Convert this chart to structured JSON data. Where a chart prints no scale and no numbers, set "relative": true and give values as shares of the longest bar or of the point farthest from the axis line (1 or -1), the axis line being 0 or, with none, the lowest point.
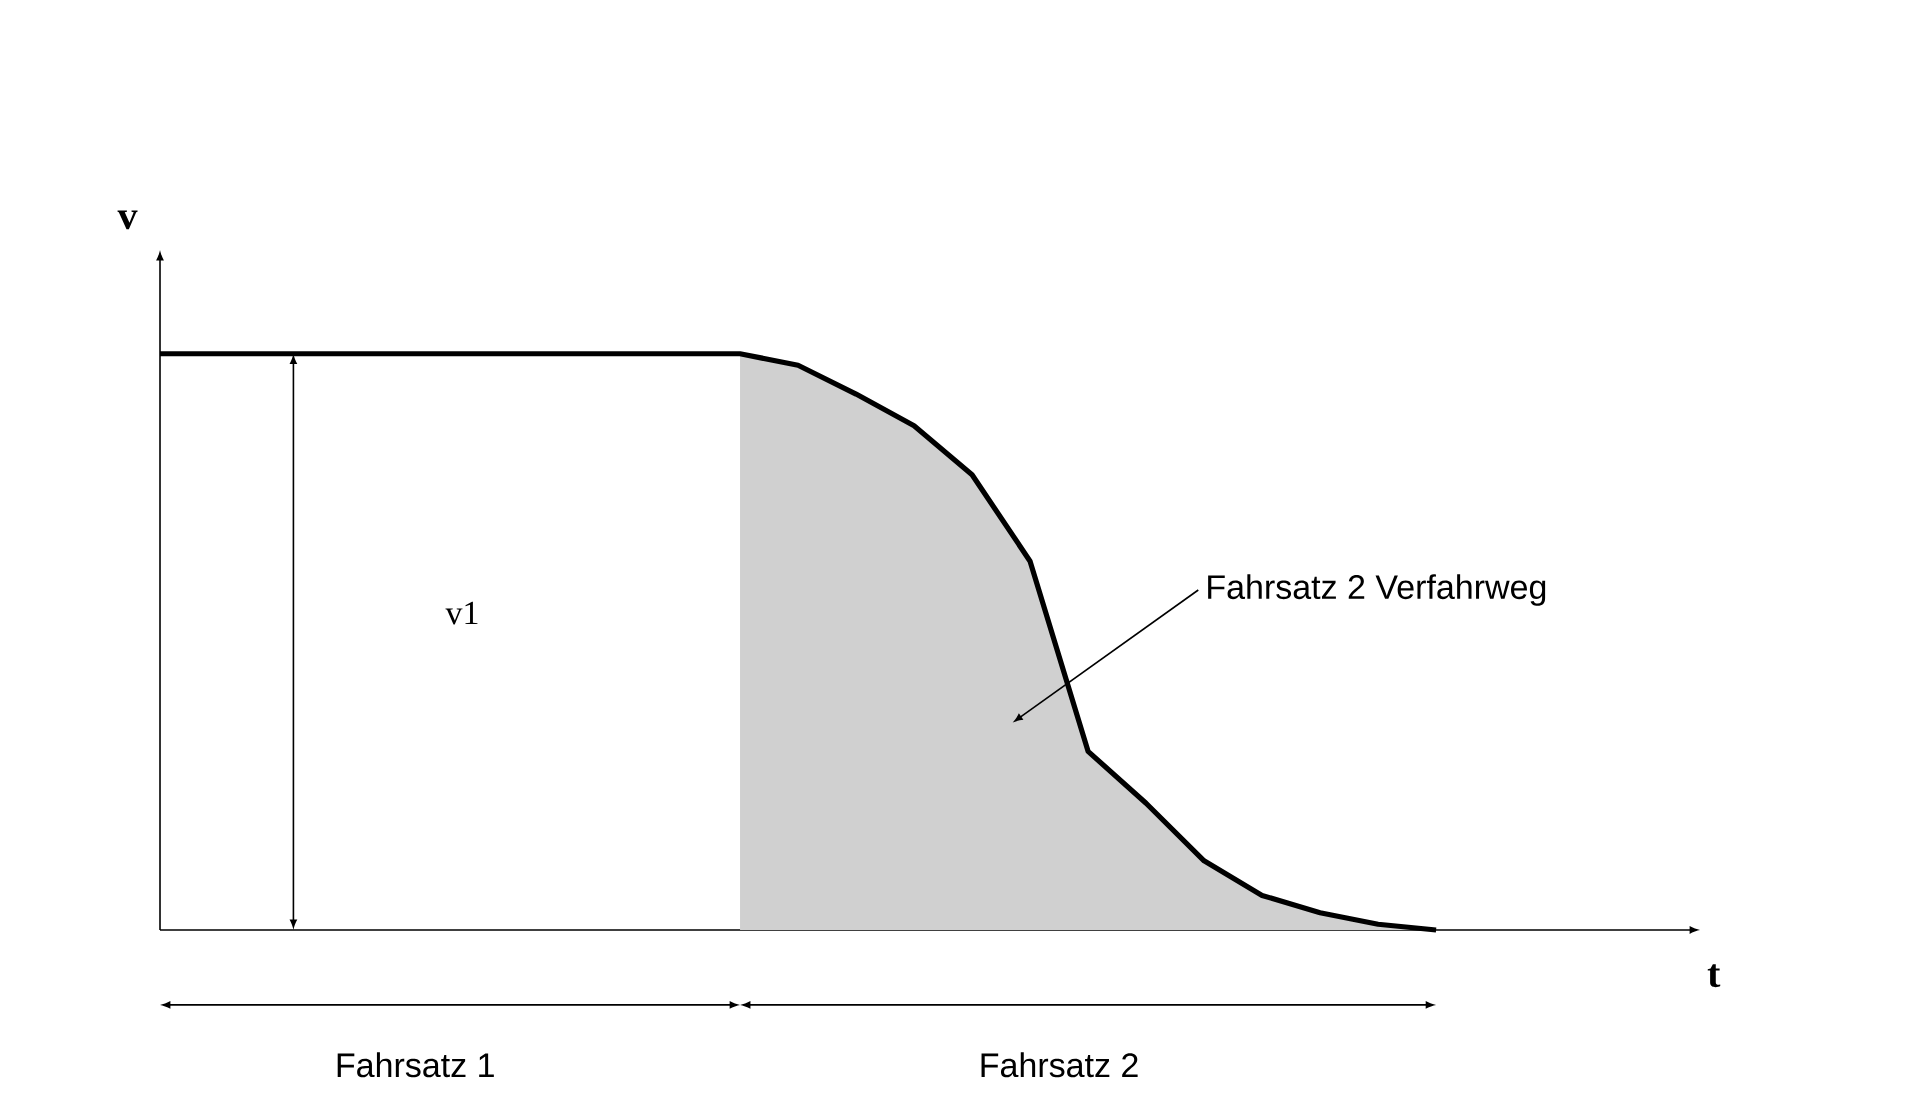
{
  "chart_data": {
    "type": "line",
    "relative": true,
    "xlabel": "t",
    "ylabel": "v",
    "categories": [
      null,
      null,
      null,
      null,
      null,
      null,
      null,
      null,
      null,
      null,
      null,
      null,
      null,
      null,
      null,
      null,
      null,
      null,
      null,
      null,
      null,
      null,
      null,
      null,
      null,
      null,
      null
    ],
    "series": [
      {
        "color": "#000000",
        "values": [
          1,
          1,
          1,
          1,
          1,
          1,
          1,
          1,
          1,
          1,
          1,
          0.98,
          0.93,
          0.875,
          0.79,
          0.64,
          0.31,
          0.22,
          0.12,
          0.06,
          0.03,
          0.01,
          0,
          null,
          null,
          null,
          null
        ]
      },
      {
        "type": "area",
        "color": "#d0d0d0",
        "values": [
          null,
          null,
          null,
          null,
          null,
          null,
          null,
          null,
          null,
          null,
          1,
          0.98,
          0.93,
          0.875,
          0.79,
          0.64,
          0.31,
          0.22,
          0.12,
          0.06,
          0.03,
          0.01,
          0,
          null,
          null,
          null,
          null
        ]
      }
    ],
    "annotations": [
      "v1",
      "Fahrsatz 2 Verfahrweg",
      "Fahrsatz 1",
      "Fahrsatz 2"
    ]
  }
}
